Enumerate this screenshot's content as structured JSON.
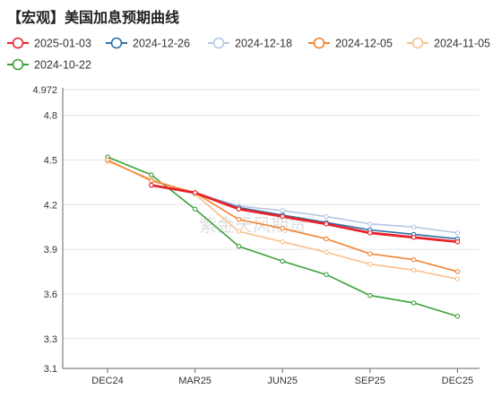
{
  "title": "【宏观】美国加息预期曲线",
  "watermark": "紫金天风期货",
  "chart_data": {
    "type": "line",
    "title": "【宏观】美国加息预期曲线",
    "xlabel": "",
    "ylabel": "",
    "x_tick_labels": [
      "DEC24",
      "MAR25",
      "JUN25",
      "SEP25",
      "DEC25"
    ],
    "x_positions": [
      0,
      1,
      2,
      3,
      4,
      5,
      6,
      7,
      8
    ],
    "x_tick_index": [
      0,
      2,
      4,
      6,
      8
    ],
    "ylim": [
      3.1,
      4.972
    ],
    "y_ticks": [
      3.1,
      3.3,
      3.6,
      3.9,
      4.2,
      4.5,
      4.8,
      4.972
    ],
    "y_tick_labels": [
      "3.1",
      "3.3",
      "3.6",
      "3.9",
      "4.2",
      "4.5",
      "4.8",
      "4.972"
    ],
    "grid": true,
    "legend_position": "top",
    "series": [
      {
        "name": "2025-01-03",
        "color": "#e8232a",
        "width": 2.8,
        "start": 1,
        "values": [
          4.33,
          4.28,
          4.17,
          4.12,
          4.07,
          4.01,
          3.98,
          3.95
        ]
      },
      {
        "name": "2024-12-26",
        "color": "#2c6fa8",
        "width": 1.6,
        "start": 1,
        "values": [
          4.33,
          4.28,
          4.18,
          4.13,
          4.08,
          4.03,
          4.0,
          3.97
        ]
      },
      {
        "name": "2024-12-18",
        "color": "#b4c8e4",
        "width": 1.6,
        "start": 1,
        "values": [
          4.33,
          4.28,
          4.19,
          4.16,
          4.12,
          4.07,
          4.05,
          4.01
        ]
      },
      {
        "name": "2024-12-05",
        "color": "#f08432",
        "width": 1.6,
        "start": 0,
        "values": [
          4.5,
          4.36,
          4.28,
          4.1,
          4.04,
          3.97,
          3.87,
          3.83,
          3.75
        ]
      },
      {
        "name": "2024-11-05",
        "color": "#f9c18e",
        "width": 1.6,
        "start": 0,
        "values": [
          4.49,
          4.37,
          4.27,
          4.02,
          3.95,
          3.88,
          3.8,
          3.76,
          3.7
        ]
      },
      {
        "name": "2024-10-22",
        "color": "#3aa13a",
        "width": 1.6,
        "start": 0,
        "values": [
          4.52,
          4.4,
          4.17,
          3.92,
          3.82,
          3.73,
          3.59,
          3.54,
          3.45
        ]
      }
    ]
  }
}
